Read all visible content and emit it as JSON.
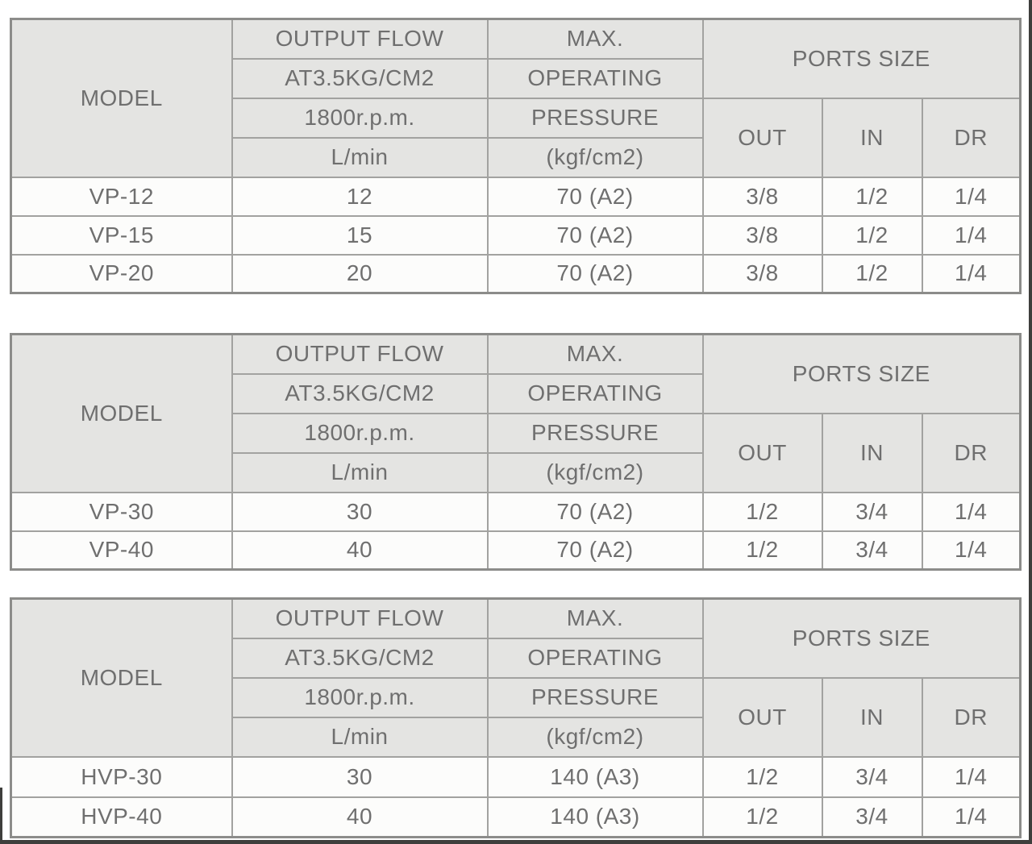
{
  "colors": {
    "header_bg": "#e4e4e2",
    "row_bg": "#fcfcfb",
    "border_inner": "#a2a2a0",
    "border_outer": "#8c8c8a",
    "text": "#6f6f6f",
    "edge": "#3e3e3c"
  },
  "header_labels": {
    "model": "MODEL",
    "output_flow_lines": [
      "OUTPUT FLOW",
      "AT3.5KG/CM2",
      "1800r.p.m.",
      "L/min"
    ],
    "max_pressure_lines": [
      "MAX.",
      "OPERATING",
      "PRESSURE",
      "(kgf/cm2)"
    ],
    "ports_size": "PORTS SIZE",
    "out": "OUT",
    "in": "IN",
    "dr": "DR"
  },
  "tables": [
    {
      "id": "vp-12-20",
      "rows": [
        {
          "model": "VP-12",
          "flow": "12",
          "pressure": "70 (A2)",
          "out": "3/8",
          "in": "1/2",
          "dr": "1/4"
        },
        {
          "model": "VP-15",
          "flow": "15",
          "pressure": "70 (A2)",
          "out": "3/8",
          "in": "1/2",
          "dr": "1/4"
        },
        {
          "model": "VP-20",
          "flow": "20",
          "pressure": "70 (A2)",
          "out": "3/8",
          "in": "1/2",
          "dr": "1/4"
        }
      ]
    },
    {
      "id": "vp-30-40",
      "rows": [
        {
          "model": "VP-30",
          "flow": "30",
          "pressure": "70 (A2)",
          "out": "1/2",
          "in": "3/4",
          "dr": "1/4"
        },
        {
          "model": "VP-40",
          "flow": "40",
          "pressure": "70 (A2)",
          "out": "1/2",
          "in": "3/4",
          "dr": "1/4"
        }
      ]
    },
    {
      "id": "hvp-30-40",
      "rows": [
        {
          "model": "HVP-30",
          "flow": "30",
          "pressure": "140 (A3)",
          "out": "1/2",
          "in": "3/4",
          "dr": "1/4"
        },
        {
          "model": "HVP-40",
          "flow": "40",
          "pressure": "140 (A3)",
          "out": "1/2",
          "in": "3/4",
          "dr": "1/4"
        }
      ]
    }
  ]
}
